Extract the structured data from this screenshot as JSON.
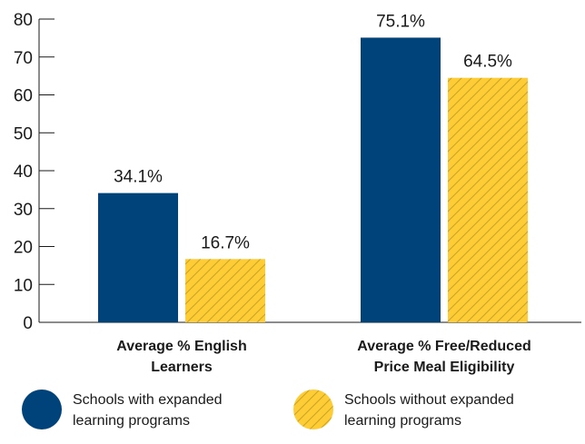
{
  "chart_data": {
    "type": "bar",
    "categories": [
      [
        "Average % English",
        "Learners"
      ],
      [
        "Average % Free/Reduced",
        "Price Meal Eligibility"
      ]
    ],
    "series": [
      {
        "name": "Schools with expanded learning programs",
        "legend_lines": [
          "Schools with expanded",
          "learning programs"
        ],
        "values": [
          34.1,
          75.1
        ],
        "labels": [
          "34.1%",
          "75.1%"
        ],
        "color": "#00437a",
        "pattern": "solid"
      },
      {
        "name": "Schools without expanded learning programs",
        "legend_lines": [
          "Schools without expanded",
          "learning programs"
        ],
        "values": [
          16.7,
          64.5
        ],
        "labels": [
          "16.7%",
          "64.5%"
        ],
        "color": "#fecd35",
        "pattern": "diagonal-hatch"
      }
    ],
    "yticks": [
      0,
      10,
      20,
      30,
      40,
      50,
      60,
      70,
      80
    ],
    "ylim": [
      0,
      80
    ],
    "title": "",
    "xlabel": "",
    "ylabel": "",
    "grid": false,
    "legend_position": "bottom"
  }
}
